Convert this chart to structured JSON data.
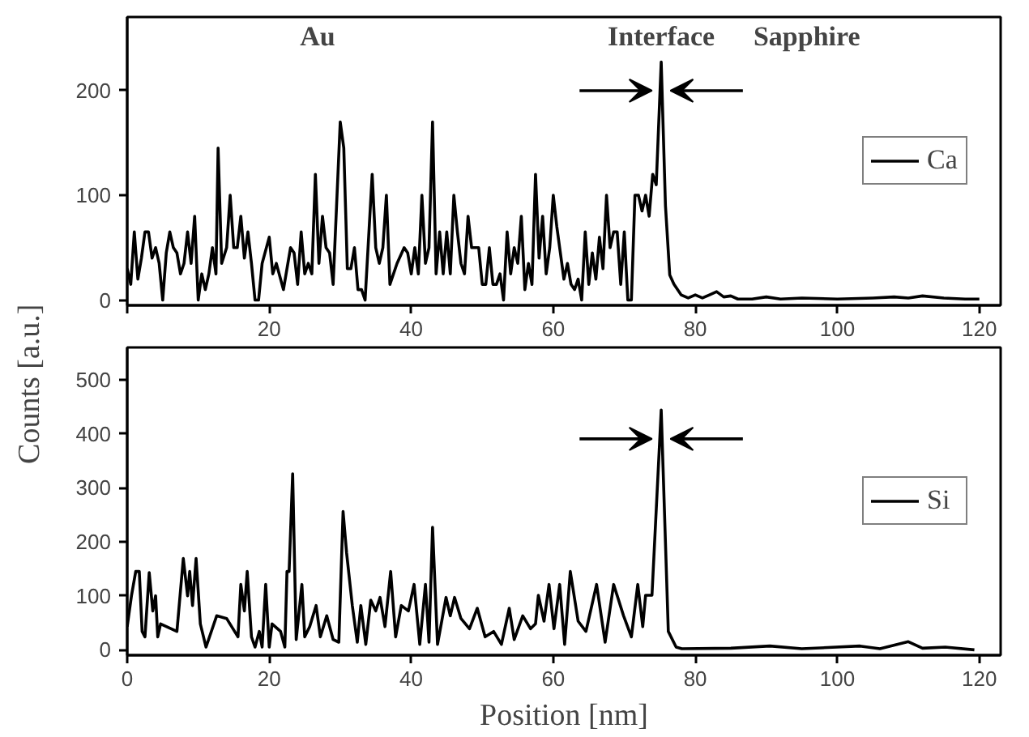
{
  "chart_data": [
    {
      "type": "line",
      "ylabel": "Counts [a.u.]",
      "annotations": [
        "Au",
        "Interface",
        "Sapphire"
      ],
      "legend": "right",
      "grid": false,
      "xlim": [
        0,
        123
      ],
      "ylim": [
        -5,
        270
      ],
      "xticks": [
        {
          "value": 0,
          "label": null
        },
        20,
        40,
        60,
        80,
        100,
        120
      ],
      "yticks": [
        0,
        100,
        200
      ],
      "series": [
        {
          "name": "Ca",
          "color": "#000000",
          "x": [
            0,
            0.5,
            1,
            1.5,
            2,
            2.5,
            3,
            3.5,
            4,
            4.5,
            5,
            5.5,
            6,
            6.5,
            7,
            7.5,
            8,
            8.5,
            9,
            9.5,
            10,
            10.5,
            11,
            11.5,
            12,
            12.5,
            12.8,
            13.3,
            14,
            14.5,
            15,
            15.5,
            16,
            16.5,
            17,
            17.5,
            18,
            18.5,
            19,
            20,
            20.5,
            21,
            22,
            23,
            23.5,
            24,
            24.5,
            25,
            25.5,
            26,
            26.5,
            27,
            27.5,
            28,
            28.5,
            29,
            30,
            30.5,
            31,
            31.5,
            32,
            32.5,
            33,
            33.5,
            34.5,
            35,
            35.5,
            36,
            36.5,
            37,
            38,
            39,
            39.5,
            40,
            40.5,
            41,
            41.5,
            42,
            42.5,
            43,
            43.5,
            44,
            44.5,
            45,
            45.5,
            46,
            46.5,
            47,
            47.5,
            48,
            48.5,
            49.5,
            50,
            50.5,
            51,
            51.5,
            52,
            52.5,
            53,
            53.5,
            54,
            54.5,
            55,
            55.5,
            56,
            56.5,
            57,
            57.5,
            58,
            58.5,
            59,
            59.5,
            60,
            60.5,
            61,
            61.5,
            62,
            62.5,
            63,
            63.5,
            64,
            64.5,
            65,
            65.5,
            66,
            66.5,
            67,
            67.5,
            68,
            68.5,
            69,
            69.5,
            70,
            70.5,
            71,
            71.5,
            72,
            72.5,
            73,
            73.5,
            74,
            74.5,
            75.2,
            75.8,
            76.4,
            77,
            78,
            79,
            80,
            81,
            82,
            83,
            84,
            85,
            86,
            88,
            90,
            92,
            95,
            100,
            105,
            108,
            110,
            112,
            115,
            118,
            120
          ],
          "values": [
            30,
            15,
            65,
            20,
            40,
            65,
            65,
            40,
            50,
            35,
            0,
            45,
            65,
            50,
            45,
            25,
            35,
            65,
            35,
            80,
            0,
            25,
            10,
            25,
            50,
            25,
            145,
            35,
            50,
            100,
            50,
            50,
            80,
            40,
            65,
            35,
            0,
            0,
            35,
            60,
            25,
            35,
            10,
            50,
            45,
            15,
            65,
            25,
            35,
            25,
            120,
            35,
            80,
            50,
            45,
            15,
            170,
            145,
            30,
            30,
            50,
            10,
            10,
            0,
            120,
            50,
            35,
            50,
            100,
            15,
            35,
            50,
            45,
            25,
            50,
            25,
            100,
            35,
            50,
            170,
            25,
            65,
            25,
            65,
            25,
            100,
            65,
            35,
            25,
            80,
            50,
            50,
            15,
            15,
            50,
            15,
            15,
            25,
            0,
            65,
            25,
            50,
            35,
            80,
            10,
            35,
            15,
            120,
            40,
            80,
            25,
            50,
            100,
            70,
            45,
            20,
            35,
            15,
            10,
            20,
            0,
            65,
            15,
            45,
            20,
            60,
            30,
            100,
            50,
            65,
            65,
            15,
            65,
            0,
            0,
            100,
            100,
            85,
            100,
            80,
            120,
            110,
            227,
            90,
            24,
            15,
            5,
            2,
            5,
            2,
            5,
            8,
            3,
            4,
            1,
            1,
            3,
            1,
            2,
            1,
            2,
            3,
            2,
            4,
            2,
            1,
            1
          ]
        }
      ]
    },
    {
      "type": "line",
      "xlabel": "Position [nm]",
      "legend": "right",
      "grid": false,
      "xlim": [
        0,
        123
      ],
      "ylim": [
        -10,
        560
      ],
      "xticks": [
        0,
        20,
        40,
        60,
        80,
        100,
        120
      ],
      "yticks": [
        0,
        100,
        200,
        300,
        400,
        500
      ],
      "series": [
        {
          "name": "Si",
          "color": "#000000",
          "x": [
            0,
            0.6,
            1.2,
            1.7,
            2.1,
            2.5,
            3.1,
            3.6,
            4,
            4.3,
            4.7,
            7,
            7.9,
            8.5,
            8.8,
            9.2,
            9.7,
            10.3,
            11.1,
            12.6,
            14,
            15.6,
            16,
            16.5,
            16.9,
            17.5,
            18,
            18.6,
            19,
            19.5,
            20,
            20.4,
            21.6,
            22.2,
            22.5,
            22.8,
            23.3,
            23.8,
            24.6,
            25,
            25.7,
            26.6,
            27.2,
            28.1,
            29,
            29.8,
            30.4,
            30.9,
            31.7,
            32.4,
            32.9,
            33.6,
            34.3,
            35,
            35.6,
            36.3,
            37.1,
            37.8,
            38.6,
            39.6,
            40.4,
            41.2,
            42,
            42.5,
            43,
            43.7,
            44.9,
            45.5,
            46.1,
            47,
            48.2,
            49.3,
            50.4,
            51.6,
            52.7,
            53.8,
            54.5,
            55.7,
            56.8,
            57.5,
            57.9,
            58.7,
            59.4,
            60.1,
            60.9,
            61.6,
            62.4,
            63.5,
            64.6,
            66.1,
            67.3,
            68.5,
            69.9,
            71,
            71.9,
            72.6,
            73,
            73.9,
            75.2,
            76.2,
            77.3,
            78.1,
            85,
            90.5,
            95,
            103.2,
            106,
            110,
            112,
            115.2,
            119.3
          ],
          "values": [
            43,
            100,
            145,
            145,
            34,
            24,
            143,
            72,
            100,
            24,
            48,
            34,
            169,
            100,
            145,
            82,
            169,
            48,
            5,
            63,
            58,
            24,
            121,
            72,
            145,
            24,
            5,
            34,
            5,
            121,
            5,
            48,
            34,
            5,
            145,
            145,
            326,
            19,
            121,
            24,
            43,
            82,
            24,
            63,
            19,
            14,
            256,
            179,
            82,
            14,
            82,
            10,
            92,
            72,
            97,
            43,
            145,
            24,
            82,
            72,
            121,
            10,
            121,
            14,
            227,
            10,
            97,
            63,
            97,
            58,
            39,
            77,
            24,
            34,
            10,
            77,
            19,
            63,
            39,
            48,
            101,
            53,
            121,
            39,
            121,
            10,
            145,
            53,
            34,
            121,
            14,
            121,
            63,
            24,
            121,
            43,
            101,
            101,
            444,
            34,
            5,
            2,
            3,
            7,
            2,
            7,
            2,
            15,
            3,
            5,
            0
          ]
        }
      ]
    }
  ]
}
